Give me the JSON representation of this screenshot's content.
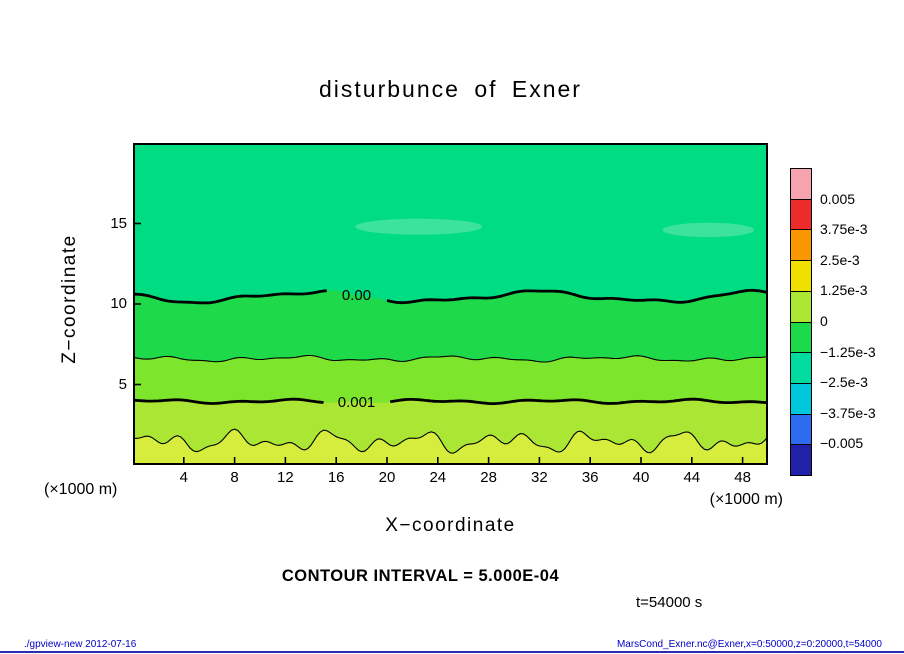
{
  "title": "disturbunce of Exner",
  "axes": {
    "x_label": "X−coordinate",
    "y_label": "Z−coordinate",
    "x_unit": "(×1000 m)",
    "y_unit": "(×1000 m)",
    "x_ticks": [
      4,
      8,
      12,
      16,
      20,
      24,
      28,
      32,
      36,
      40,
      44,
      48
    ],
    "y_ticks": [
      5,
      10,
      15
    ]
  },
  "chart_data": {
    "type": "filled-contour",
    "title": "disturbunce of Exner",
    "xlabel": "X−coordinate",
    "ylabel": "Z−coordinate",
    "x_unit": "×1000 m",
    "z_unit": "×1000 m",
    "x_range": [
      0,
      50
    ],
    "z_range": [
      0,
      20
    ],
    "contour_interval": 0.0005,
    "time_s": 54000,
    "contours": [
      {
        "label": "0.00",
        "value": 0.0,
        "z_base": 10.45,
        "line_width": 2.8,
        "labeled": true,
        "label_x": 17.6,
        "waves": [
          [
            0.3,
            0.35,
            2.95
          ],
          [
            0.1,
            0.8,
            1.0
          ],
          [
            0.05,
            1.7,
            0.3
          ]
        ]
      },
      {
        "label": "",
        "value": 0.0005,
        "z_base": 6.6,
        "line_width": 1.1,
        "labeled": false,
        "label_x": 0,
        "waves": [
          [
            0.1,
            0.5,
            1.5
          ],
          [
            0.08,
            1.2,
            4.0
          ],
          [
            0.05,
            2.2,
            2.0
          ]
        ]
      },
      {
        "label": "0.001",
        "value": 0.001,
        "z_base": 3.95,
        "line_width": 2.8,
        "labeled": true,
        "label_x": 17.6,
        "waves": [
          [
            0.08,
            0.6,
            0.5
          ],
          [
            0.06,
            1.4,
            2.6
          ]
        ]
      },
      {
        "label": "",
        "value": 0.0015,
        "z_base": 1.45,
        "line_width": 1.1,
        "labeled": false,
        "label_x": 0,
        "waves": [
          [
            0.35,
            0.9,
            0.3
          ],
          [
            0.3,
            1.6,
            1.9
          ],
          [
            0.2,
            2.8,
            4.1
          ]
        ]
      }
    ],
    "bands": [
      "#00DC82",
      "#1ED94A",
      "#7DE52B",
      "#ABE634",
      "#D6ED3E"
    ],
    "patches": [
      {
        "x": 22.5,
        "z": 14.8,
        "rx": 5.0,
        "rz": 0.5,
        "color": "#3CE49B"
      },
      {
        "x": 45.3,
        "z": 14.6,
        "rx": 3.6,
        "rz": 0.45,
        "color": "#3CE49B"
      }
    ],
    "colorbar": {
      "labels": [
        "0.005",
        "3.75e-3",
        "2.5e-3",
        "1.25e-3",
        "0",
        "−1.25e-3",
        "−2.5e-3",
        "−3.75e-3",
        "−0.005"
      ],
      "colors": [
        "#F7A3B0",
        "#EE2B2B",
        "#FA9600",
        "#F0E000",
        "#AAE632",
        "#1ED94A",
        "#00DCA0",
        "#00C8DC",
        "#2D6BF0",
        "#2020A8"
      ]
    }
  },
  "annotations": {
    "contour_interval_text": "CONTOUR INTERVAL = 5.000E-04",
    "time_text": "t=54000 s"
  },
  "footer": {
    "left": "./gpview-new  2012-07-16",
    "right": "MarsCond_Exner.nc@Exner,x=0:50000,z=0:20000,t=54000"
  }
}
